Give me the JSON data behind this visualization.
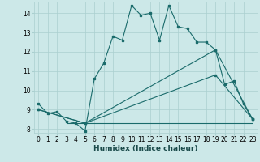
{
  "xlabel": "Humidex (Indice chaleur)",
  "bg_color": "#cce8e8",
  "line_color": "#1a6b6b",
  "grid_color": "#aacfcf",
  "xlim": [
    -0.5,
    23.5
  ],
  "ylim": [
    7.8,
    14.6
  ],
  "xticks": [
    0,
    1,
    2,
    3,
    4,
    5,
    6,
    7,
    8,
    9,
    10,
    11,
    12,
    13,
    14,
    15,
    16,
    17,
    18,
    19,
    20,
    21,
    22,
    23
  ],
  "yticks": [
    8,
    9,
    10,
    11,
    12,
    13,
    14
  ],
  "line1_x": [
    0,
    1,
    2,
    3,
    4,
    5,
    6,
    7,
    8,
    9,
    10,
    11,
    12,
    13,
    14,
    15,
    16,
    17,
    18,
    19,
    20,
    21,
    22,
    23
  ],
  "line1_y": [
    9.3,
    8.8,
    8.9,
    8.4,
    8.3,
    7.9,
    10.6,
    11.4,
    12.8,
    12.6,
    14.4,
    13.9,
    14.0,
    12.6,
    14.4,
    13.3,
    13.2,
    12.5,
    12.5,
    12.1,
    10.3,
    10.5,
    9.3,
    8.5
  ],
  "line2_x": [
    0,
    5,
    19,
    23
  ],
  "line2_y": [
    9.0,
    8.3,
    12.1,
    8.5
  ],
  "line3_x": [
    0,
    5,
    19,
    23
  ],
  "line3_y": [
    9.0,
    8.3,
    10.8,
    8.5
  ],
  "hline_y": 8.3,
  "hline_x_start": 3,
  "hline_x_end": 23,
  "tick_fontsize": 5.5,
  "label_fontsize": 6.5
}
